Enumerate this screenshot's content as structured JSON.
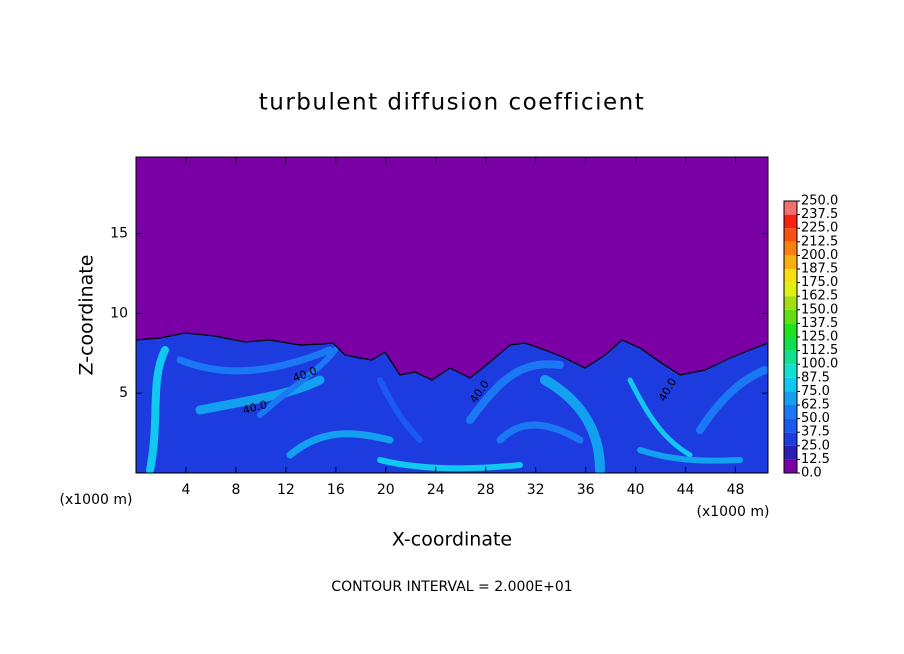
{
  "chart_data": {
    "type": "contour",
    "title": "turbulent diffusion coefficient",
    "x_label": "X-coordinate",
    "y_label": "Z-coordinate",
    "x_unit_label": "(x1000 m)",
    "y_unit_label": "(x1000 m)",
    "footer": "CONTOUR INTERVAL = 2.000E+01",
    "xlim": [
      0,
      50.6
    ],
    "ylim": [
      0,
      19.8
    ],
    "xticks": [
      4,
      8,
      12,
      16,
      20,
      24,
      28,
      32,
      36,
      40,
      44,
      48
    ],
    "yticks": [
      5,
      10,
      15
    ],
    "contour_labels": [
      "40.0",
      "40.0",
      "40.0",
      "40.0"
    ],
    "levels": [
      {
        "value": 0,
        "label": "0.0"
      },
      {
        "value": 12.5,
        "label": "12.5"
      },
      {
        "value": 25,
        "label": "25.0"
      },
      {
        "value": 37.5,
        "label": "37.5"
      },
      {
        "value": 50,
        "label": "50.0"
      },
      {
        "value": 62.5,
        "label": "62.5"
      },
      {
        "value": 75,
        "label": "75.0"
      },
      {
        "value": 87.5,
        "label": "87.5"
      },
      {
        "value": 100,
        "label": "100.0"
      },
      {
        "value": 112.5,
        "label": "112.5"
      },
      {
        "value": 125,
        "label": "125.0"
      },
      {
        "value": 137.5,
        "label": "137.5"
      },
      {
        "value": 150,
        "label": "150.0"
      },
      {
        "value": 162.5,
        "label": "162.5"
      },
      {
        "value": 175,
        "label": "175.0"
      },
      {
        "value": 187.5,
        "label": "187.5"
      },
      {
        "value": 200,
        "label": "200.0"
      },
      {
        "value": 212.5,
        "label": "212.5"
      },
      {
        "value": 225,
        "label": "225.0"
      },
      {
        "value": 237.5,
        "label": "237.5"
      },
      {
        "value": 250,
        "label": "250.0"
      }
    ],
    "colors": [
      "#7a00a6",
      "#2a1fb0",
      "#1c3ce0",
      "#1a5af0",
      "#1a78f5",
      "#14a0f0",
      "#10c8f0",
      "#10e0d0",
      "#10e090",
      "#10e050",
      "#20e020",
      "#60e010",
      "#a0e010",
      "#e0f010",
      "#f8e010",
      "#f8b010",
      "#f88010",
      "#f85010",
      "#f82010",
      "#f07070"
    ]
  }
}
